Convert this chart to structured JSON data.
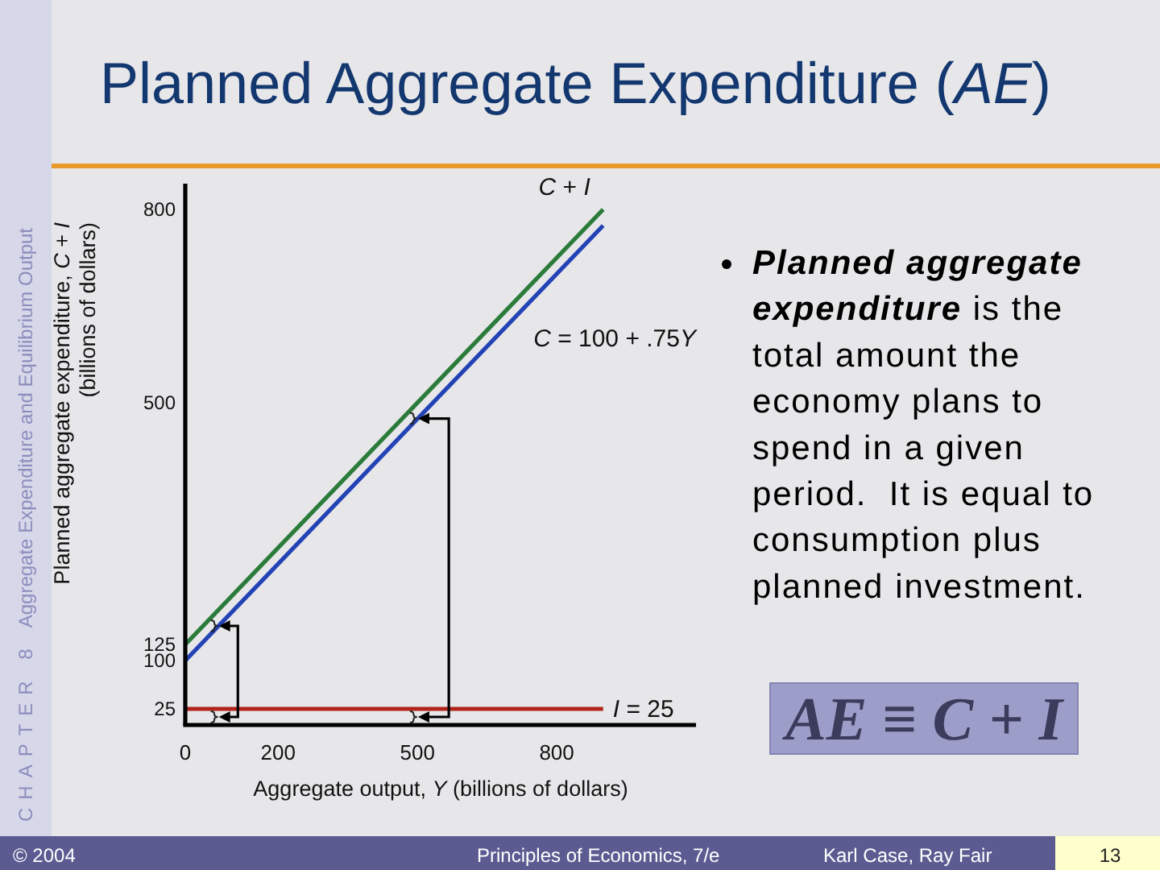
{
  "chart_data": {
    "type": "line",
    "title": "Planned Aggregate Expenditure (AE)",
    "xlabel": "Aggregate output, Y (billions of dollars)",
    "ylabel": "Planned aggregate expenditure, C + I\n(billions of dollars)",
    "x": [
      0,
      900
    ],
    "series": [
      {
        "name": "C + I",
        "color": "#2b7b3b",
        "values": [
          125,
          800
        ]
      },
      {
        "name": "C = 100 + .75Y",
        "color": "#2342b5",
        "values": [
          100,
          775
        ]
      },
      {
        "name": "I = 25",
        "color": "#b0241c",
        "values": [
          25,
          25
        ]
      }
    ],
    "xlim": [
      0,
      1100
    ],
    "ylim": [
      0,
      840
    ],
    "xticks": [
      0,
      200,
      500,
      800
    ],
    "yticks": [
      25,
      100,
      125,
      500,
      800
    ],
    "annotations": [
      "CHAPTER 8",
      "Aggregate Expenditure and Equilibrium Output",
      "Planned aggregate expenditure is the total amount the economy plans to spend in a given period.  It is equal to consumption plus planned investment.",
      "AE ≡ C + I",
      "© 2004",
      "Principles of Economics, 7/e",
      "Karl Case, Ray Fair",
      "13"
    ]
  }
}
